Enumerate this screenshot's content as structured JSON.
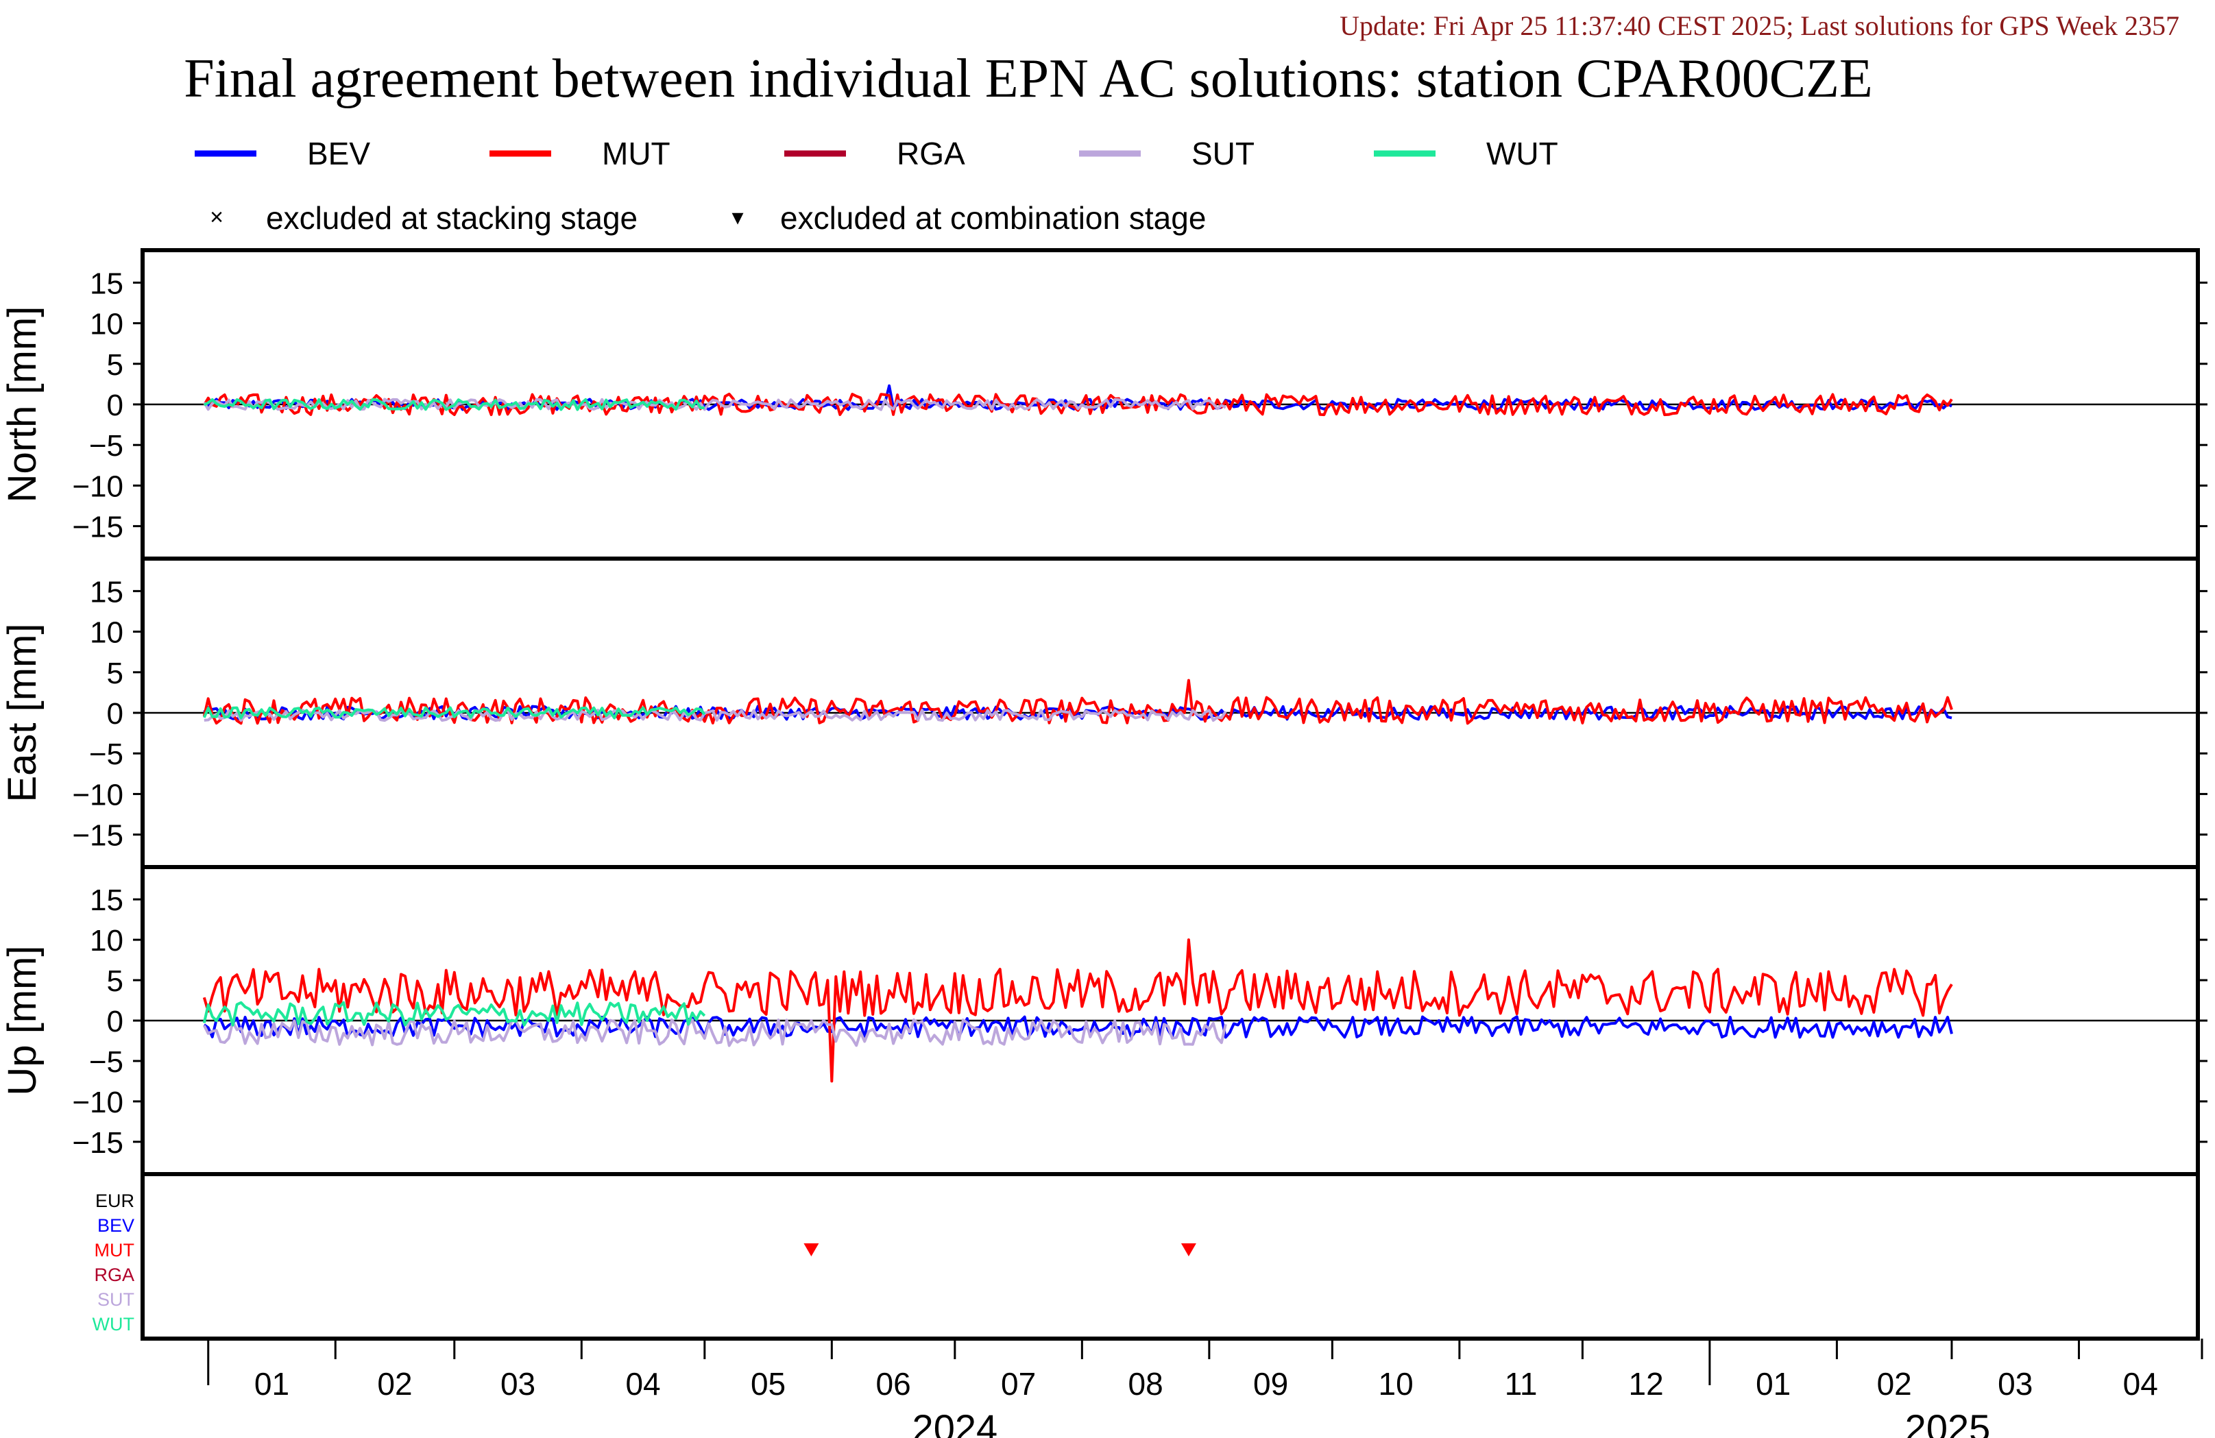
{
  "header": {
    "update_text": "Update: Fri Apr 25 11:37:40 CEST 2025; Last solutions for GPS Week 2357",
    "title": "Final agreement between individual EPN AC solutions: station CPAR00CZE"
  },
  "legend": {
    "series": [
      {
        "name": "BEV",
        "color": "#0000ff"
      },
      {
        "name": "MUT",
        "color": "#ff0000"
      },
      {
        "name": "RGA",
        "color": "#b0002a"
      },
      {
        "name": "SUT",
        "color": "#bca6dc"
      },
      {
        "name": "WUT",
        "color": "#1ee89a"
      }
    ],
    "marker_stacking": {
      "symbol": "×",
      "label": "excluded at stacking stage"
    },
    "marker_combination": {
      "symbol": "▾",
      "label": "excluded at combination stage"
    }
  },
  "chart_data": [
    {
      "type": "line",
      "panel": "North",
      "ylabel": "North [mm]",
      "ylim": [
        -19,
        19
      ],
      "yticks": [
        15,
        10,
        5,
        0,
        -5,
        -10,
        -15
      ],
      "x_range": [
        "2023-12-16",
        "2025-04-30"
      ],
      "series": [
        {
          "name": "BEV",
          "color": "#0000ff",
          "noise_mm": 0.4,
          "offset_mm": 0,
          "x_end": "2025-03-01"
        },
        {
          "name": "MUT",
          "color": "#ff0000",
          "noise_mm": 0.8,
          "offset_mm": 0,
          "x_end": "2025-03-01"
        },
        {
          "name": "SUT",
          "color": "#bca6dc",
          "noise_mm": 0.4,
          "offset_mm": 0,
          "x_end": "2024-09-05"
        },
        {
          "name": "WUT",
          "color": "#1ee89a",
          "noise_mm": 0.4,
          "offset_mm": 0,
          "x_end": "2024-05-01"
        }
      ],
      "annotations": [
        {
          "label": "BEV peak",
          "x": "2024-06-15",
          "y": 2.3
        }
      ]
    },
    {
      "type": "line",
      "panel": "East",
      "ylabel": "East [mm]",
      "ylim": [
        -19,
        19
      ],
      "yticks": [
        15,
        10,
        5,
        0,
        -5,
        -10,
        -15
      ],
      "x_range": [
        "2023-12-16",
        "2025-04-30"
      ],
      "series": [
        {
          "name": "BEV",
          "color": "#0000ff",
          "noise_mm": 0.5,
          "offset_mm": 0,
          "x_end": "2025-03-01"
        },
        {
          "name": "MUT",
          "color": "#ff0000",
          "noise_mm": 1.0,
          "offset_mm": 0.3,
          "x_end": "2025-03-01"
        },
        {
          "name": "SUT",
          "color": "#bca6dc",
          "noise_mm": 0.4,
          "offset_mm": -0.3,
          "x_end": "2024-09-05"
        },
        {
          "name": "WUT",
          "color": "#1ee89a",
          "noise_mm": 0.4,
          "offset_mm": 0,
          "x_end": "2024-05-01"
        }
      ],
      "annotations": [
        {
          "label": "MUT peak",
          "x": "2024-08-27",
          "y": 4.0
        }
      ]
    },
    {
      "type": "line",
      "panel": "Up",
      "ylabel": "Up [mm]",
      "ylim": [
        -19,
        19
      ],
      "yticks": [
        15,
        10,
        5,
        0,
        -5,
        -10,
        -15
      ],
      "x_range": [
        "2023-12-16",
        "2025-04-30"
      ],
      "series": [
        {
          "name": "BEV",
          "color": "#0000ff",
          "noise_mm": 0.8,
          "offset_mm": -0.8,
          "x_end": "2025-03-01"
        },
        {
          "name": "MUT",
          "color": "#ff0000",
          "noise_mm": 1.8,
          "offset_mm": 3.5,
          "x_end": "2025-03-01"
        },
        {
          "name": "SUT",
          "color": "#bca6dc",
          "noise_mm": 1.0,
          "offset_mm": -1.5,
          "x_end": "2024-09-05"
        },
        {
          "name": "WUT",
          "color": "#1ee89a",
          "noise_mm": 0.9,
          "offset_mm": 0.8,
          "x_end": "2024-05-01"
        }
      ],
      "annotations": [
        {
          "label": "MUT max",
          "x": "2024-08-27",
          "y": 10.0
        },
        {
          "label": "MUT min",
          "x": "2024-06-01",
          "y": -7.5
        }
      ]
    },
    {
      "type": "scatter",
      "panel": "exclusions",
      "ac_labels": [
        {
          "name": "EUR",
          "color": "#000000"
        },
        {
          "name": "BEV",
          "color": "#0000ff"
        },
        {
          "name": "MUT",
          "color": "#ff0000"
        },
        {
          "name": "RGA",
          "color": "#b0002a"
        },
        {
          "name": "SUT",
          "color": "#bca6dc"
        },
        {
          "name": "WUT",
          "color": "#1ee89a"
        }
      ],
      "points": [
        {
          "ac": "MUT",
          "x": "2024-05-27",
          "marker": "combination"
        },
        {
          "ac": "MUT",
          "x": "2024-08-27",
          "marker": "combination"
        }
      ]
    }
  ],
  "x_axis": {
    "month_labels": [
      "01",
      "02",
      "03",
      "04",
      "05",
      "06",
      "07",
      "08",
      "09",
      "10",
      "11",
      "12",
      "01",
      "02",
      "03",
      "04"
    ],
    "year_labels": [
      {
        "text": "2024",
        "x": "2024-07-01"
      },
      {
        "text": "2025",
        "x": "2025-02-28"
      }
    ]
  }
}
